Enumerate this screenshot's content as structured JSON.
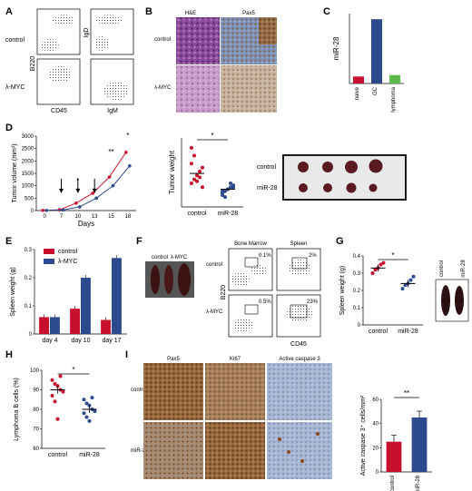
{
  "panels": {
    "A": {
      "label": "A",
      "rows": [
        "control",
        "λ-MYC"
      ],
      "x_left": "CD45",
      "x_right": "IgM",
      "y_left": "B220",
      "y_right": "IgD"
    },
    "B": {
      "label": "B",
      "cols": [
        "H&E",
        "Pax5"
      ],
      "rows": [
        "control",
        "λ-MYC"
      ]
    },
    "C": {
      "label": "C"
    },
    "D": {
      "label": "D",
      "tumor_labels": [
        "control",
        "miR-28"
      ]
    },
    "E": {
      "label": "E"
    },
    "F": {
      "label": "F",
      "spleen_labels": [
        "control",
        "λ-MYC"
      ],
      "flow_cols": [
        "Bone Marrow",
        "Spleen"
      ],
      "flow_rows": [
        "control",
        "λ-MYC"
      ],
      "gates": [
        "0.1%",
        "2%",
        "0.5%",
        "23%"
      ],
      "xlabel": "CD45",
      "ylabel": "B220"
    },
    "G": {
      "label": "G",
      "spleen_labels": [
        "control",
        "miR-28"
      ]
    },
    "H": {
      "label": "H"
    },
    "I": {
      "label": "I",
      "cols": [
        "Pax5",
        "Ki67",
        "Active caspase 3"
      ],
      "rows": [
        "control",
        "miR-28"
      ]
    }
  },
  "chart_data": [
    {
      "id": "C",
      "type": "bar",
      "categories": [
        "naive",
        "GC",
        "lymphoma"
      ],
      "values": [
        1,
        9.2,
        1.2
      ],
      "colors": [
        "#c8102e",
        "#2e4a8e",
        "#5cb84a"
      ],
      "ylabel": "miR-28",
      "ylim": [
        0,
        10
      ]
    },
    {
      "id": "D1",
      "type": "line",
      "x": [
        0,
        7,
        10,
        13,
        15,
        18
      ],
      "xticks": [
        "0",
        "7",
        "10",
        "13",
        "15",
        "18"
      ],
      "xlabel": "Days",
      "ylabel": "Tumor volume (mm³)",
      "ylim": [
        0,
        3000
      ],
      "yticks": [
        "0",
        "500",
        "1000",
        "1500",
        "2000",
        "2500",
        "3000"
      ],
      "series": [
        {
          "name": "control",
          "color": "#c8102e",
          "values": [
            5,
            30,
            300,
            700,
            1350,
            2350
          ]
        },
        {
          "name": "miR-28",
          "color": "#2e4a8e",
          "values": [
            5,
            25,
            150,
            500,
            1000,
            1800
          ]
        }
      ],
      "arrows_at": [
        7,
        10,
        13
      ],
      "significance": [
        {
          "x": 10,
          "text": "*"
        },
        {
          "x": 15,
          "text": "**"
        },
        {
          "x": 18,
          "text": "*"
        }
      ]
    },
    {
      "id": "D2",
      "type": "scatter",
      "categories": [
        "control",
        "miR-28"
      ],
      "ylabel": "Tumor weight",
      "ylim": [
        0,
        3.5
      ],
      "colors": [
        "#c8102e",
        "#2e4a8e"
      ],
      "points": [
        [
          1.2,
          1.4,
          1.6,
          1.8,
          2.0,
          2.2,
          2.6,
          1.3,
          1.5,
          1.0,
          3.0
        ],
        [
          0.6,
          0.8,
          0.9,
          1.0,
          1.1,
          0.7,
          0.5,
          0.9,
          1.2,
          1.0,
          0.8
        ]
      ],
      "means": [
        1.7,
        0.9
      ],
      "sig": "*"
    },
    {
      "id": "E",
      "type": "bar",
      "categories": [
        "day 4",
        "day 10",
        "day 17"
      ],
      "ylabel": "Spleen weight (g)",
      "ylim": [
        0,
        0.3
      ],
      "yticks": [
        "0",
        "0.1",
        "0.2",
        "0.3"
      ],
      "series": [
        {
          "name": "control",
          "color": "#c8102e",
          "values": [
            0.06,
            0.09,
            0.05
          ]
        },
        {
          "name": "λ-MYC",
          "color": "#2e4a8e",
          "values": [
            0.06,
            0.2,
            0.27
          ]
        }
      ]
    },
    {
      "id": "G",
      "type": "scatter",
      "categories": [
        "control",
        "miR-28"
      ],
      "ylabel": "Spleen weight (g)",
      "ylim": [
        0,
        0.4
      ],
      "yticks": [
        "0",
        "0.1",
        "0.2",
        "0.3",
        "0.4"
      ],
      "colors": [
        "#c8102e",
        "#2e4a8e"
      ],
      "points": [
        [
          0.3,
          0.32,
          0.33,
          0.35,
          0.36
        ],
        [
          0.21,
          0.23,
          0.24,
          0.26,
          0.28
        ]
      ],
      "means": [
        0.33,
        0.24
      ],
      "sig": "*"
    },
    {
      "id": "H",
      "type": "scatter",
      "categories": [
        "control",
        "miR-28"
      ],
      "ylabel": "Lymphoma B cells (%)",
      "ylim": [
        60,
        100
      ],
      "yticks": [
        "60",
        "70",
        "80",
        "90",
        "100"
      ],
      "colors": [
        "#c8102e",
        "#2e4a8e"
      ],
      "points": [
        [
          95,
          93,
          92,
          90,
          89,
          87,
          84,
          75,
          97
        ],
        [
          85,
          83,
          82,
          80,
          79,
          78,
          76,
          74,
          86
        ]
      ],
      "means": [
        90,
        80
      ],
      "sig": "*"
    },
    {
      "id": "I",
      "type": "bar",
      "categories": [
        "control",
        "miR-28"
      ],
      "values": [
        25,
        45
      ],
      "colors": [
        "#c8102e",
        "#2e4a8e"
      ],
      "ylabel": "Active caspase 3⁺ cells/mm²",
      "ylim": [
        0,
        60
      ],
      "yticks": [
        "0",
        "20",
        "40",
        "60"
      ],
      "sig": "**"
    }
  ],
  "colors": {
    "red": "#c8102e",
    "blue": "#2e4a8e",
    "green": "#5cb84a"
  }
}
